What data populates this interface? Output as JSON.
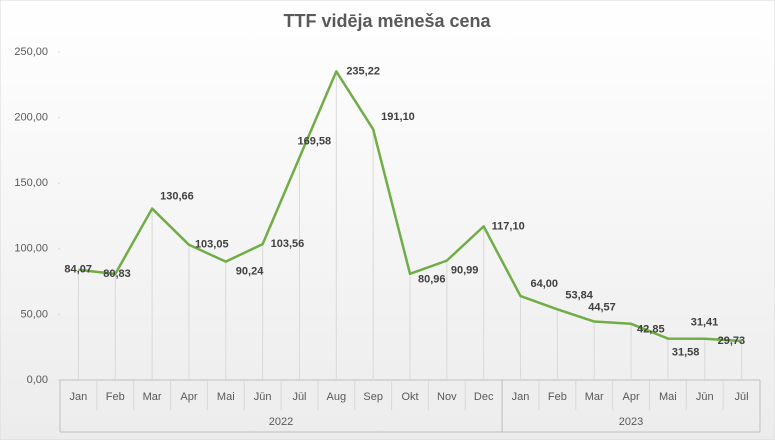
{
  "chart_data": {
    "type": "line",
    "title": "TTF vidēja mēneša cena",
    "categories": [
      "Jan",
      "Feb",
      "Mar",
      "Apr",
      "Mai",
      "Jūn",
      "Jūl",
      "Aug",
      "Sep",
      "Okt",
      "Nov",
      "Dec",
      "Jan",
      "Feb",
      "Mar",
      "Apr",
      "Mai",
      "Jūn",
      "Jūl"
    ],
    "category_groups": [
      {
        "label": "2022",
        "categories": 12
      },
      {
        "label": "2023",
        "categories": 7
      }
    ],
    "series": [
      {
        "color": "#70ad47",
        "values": [
          84.07,
          80.83,
          130.66,
          103.05,
          90.24,
          103.56,
          169.58,
          235.22,
          191.1,
          80.96,
          90.99,
          117.1,
          64.0,
          53.84,
          44.57,
          42.85,
          31.58,
          31.41,
          29.73
        ],
        "value_labels": [
          "84,07",
          "80,83",
          "130,66",
          "103,05",
          "90,24",
          "103,56",
          "169,58",
          "235,22",
          "191,10",
          "80,96",
          "90,99",
          "117,10",
          "64,00",
          "53,84",
          "44,57",
          "42,85",
          "31,58",
          "31,41",
          "29,73"
        ]
      }
    ],
    "ylim": [
      0,
      250
    ],
    "yticks": [
      {
        "value": 0,
        "label": "0,00"
      },
      {
        "value": 50,
        "label": "50,00"
      },
      {
        "value": 100,
        "label": "100,00"
      },
      {
        "value": 150,
        "label": "150,00"
      },
      {
        "value": 200,
        "label": "200,00"
      },
      {
        "value": 250,
        "label": "250,00"
      }
    ],
    "drop_lines": true
  }
}
